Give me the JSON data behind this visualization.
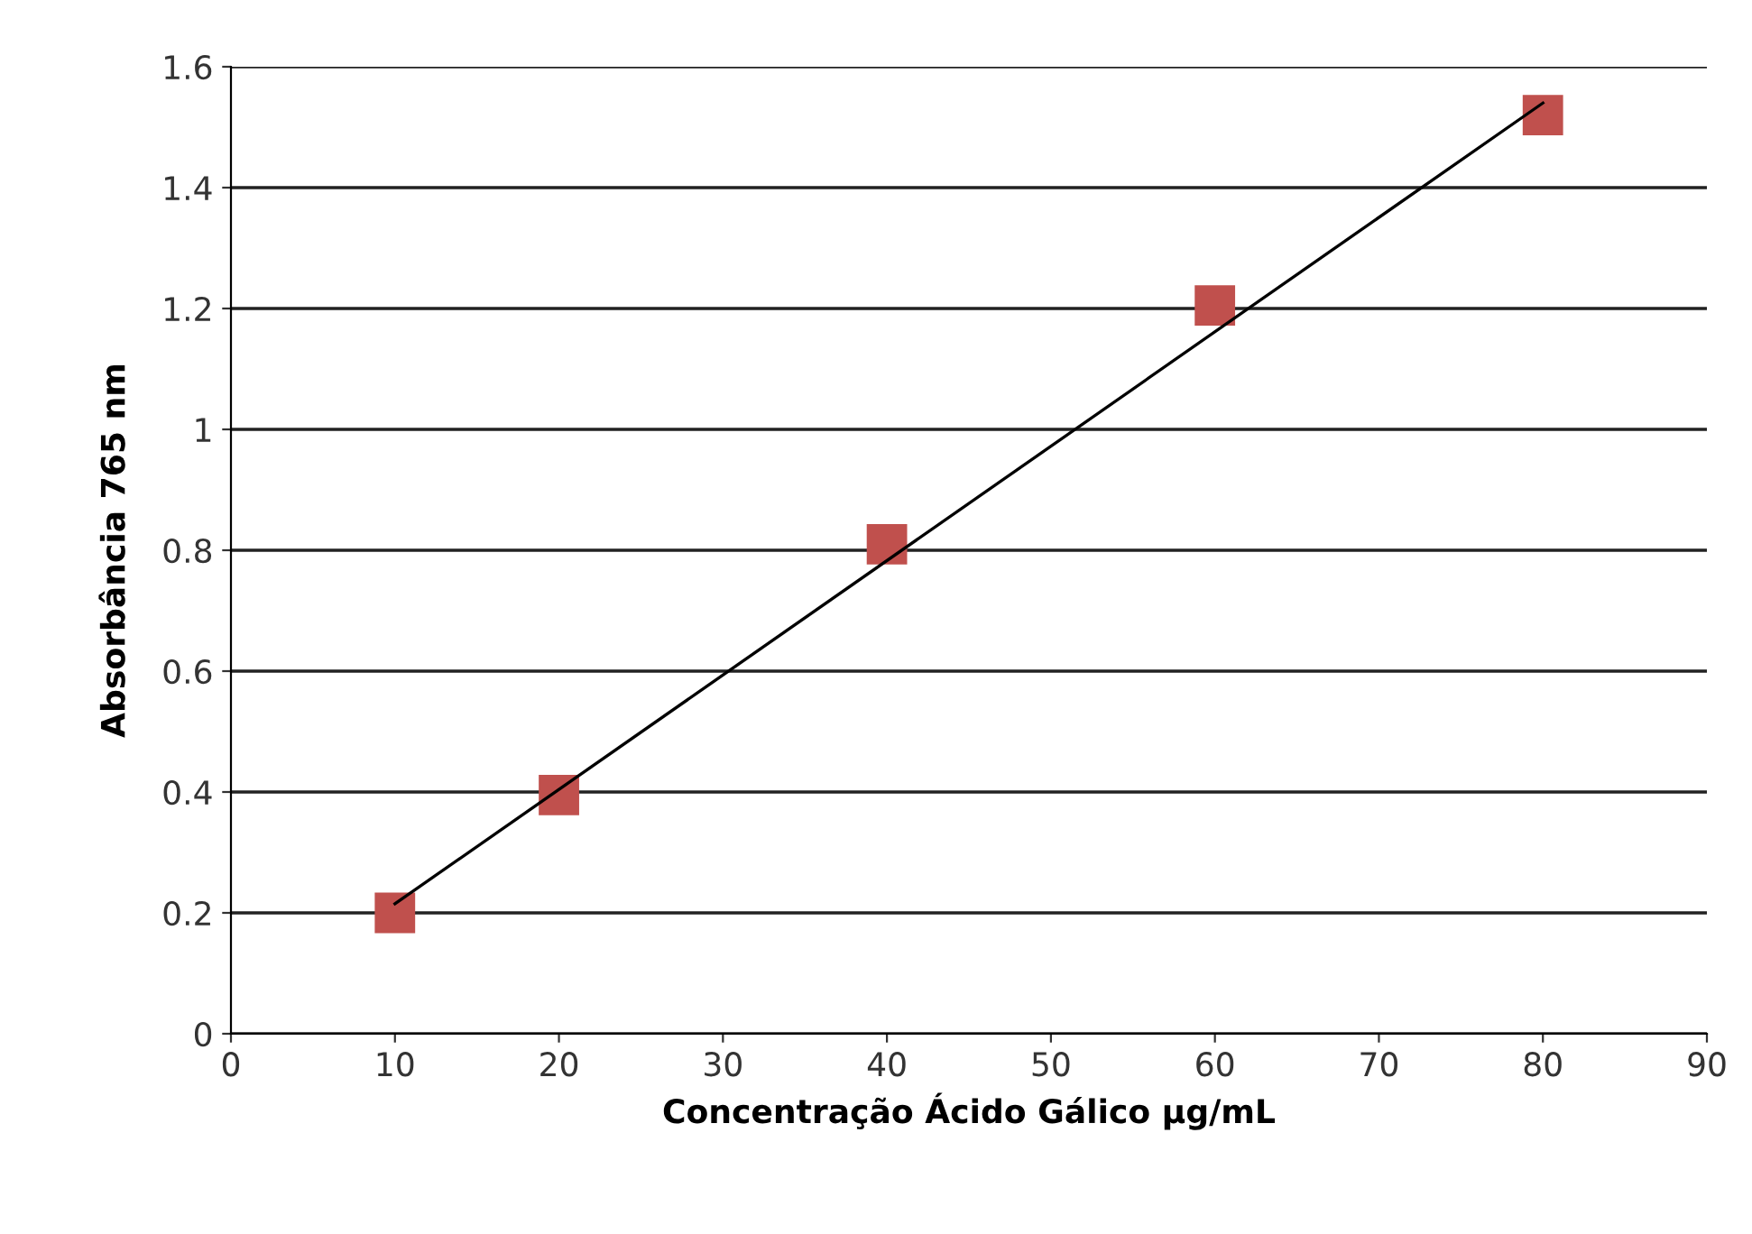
{
  "chart_data": {
    "type": "scatter",
    "xlabel": "Concentração Ácido Gálico µg/mL",
    "ylabel": "Absorbância 765 nm",
    "series": [
      {
        "color": "#c0504d",
        "marker": "square",
        "x": [
          10,
          20,
          40,
          60,
          80
        ],
        "values": [
          0.2,
          0.395,
          0.81,
          1.205,
          1.52
        ]
      },
      {
        "type": "line",
        "color": "#000000",
        "marker": "none",
        "x": [
          10,
          80
        ],
        "values": [
          0.215,
          1.54
        ]
      }
    ],
    "xlim": [
      0,
      90
    ],
    "xticks": [
      0,
      10,
      20,
      30,
      40,
      50,
      60,
      70,
      80,
      90
    ],
    "ylim": [
      0,
      1.6
    ],
    "yticks": [
      0,
      0.2,
      0.4,
      0.6,
      0.8,
      1,
      1.2,
      1.4,
      1.6
    ],
    "grid": "y",
    "legend": false
  }
}
